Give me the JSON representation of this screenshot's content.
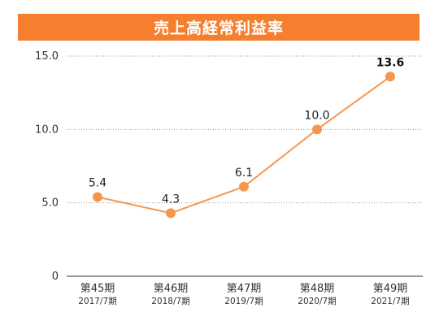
{
  "chart_data": {
    "type": "line",
    "title": "売上高経常利益率",
    "categories": [
      "第45期",
      "第46期",
      "第47期",
      "第48期",
      "第49期"
    ],
    "category_sublabels": [
      "2017/7期",
      "2018/7期",
      "2019/7期",
      "2020/7期",
      "2021/7期"
    ],
    "values": [
      5.4,
      4.3,
      6.1,
      10.0,
      13.6
    ],
    "data_labels": [
      "5.4",
      "4.3",
      "6.1",
      "10.0",
      "13.6"
    ],
    "y_ticks": [
      "0",
      "5.0",
      "10.0",
      "15.0"
    ],
    "y_tick_values": [
      0,
      5,
      10,
      15
    ],
    "ylim": [
      0,
      15
    ],
    "grid": "horizontal-dotted",
    "colors": {
      "title_bg": "#f57f2e",
      "line": "#f5964f",
      "marker": "#f5964f"
    }
  }
}
